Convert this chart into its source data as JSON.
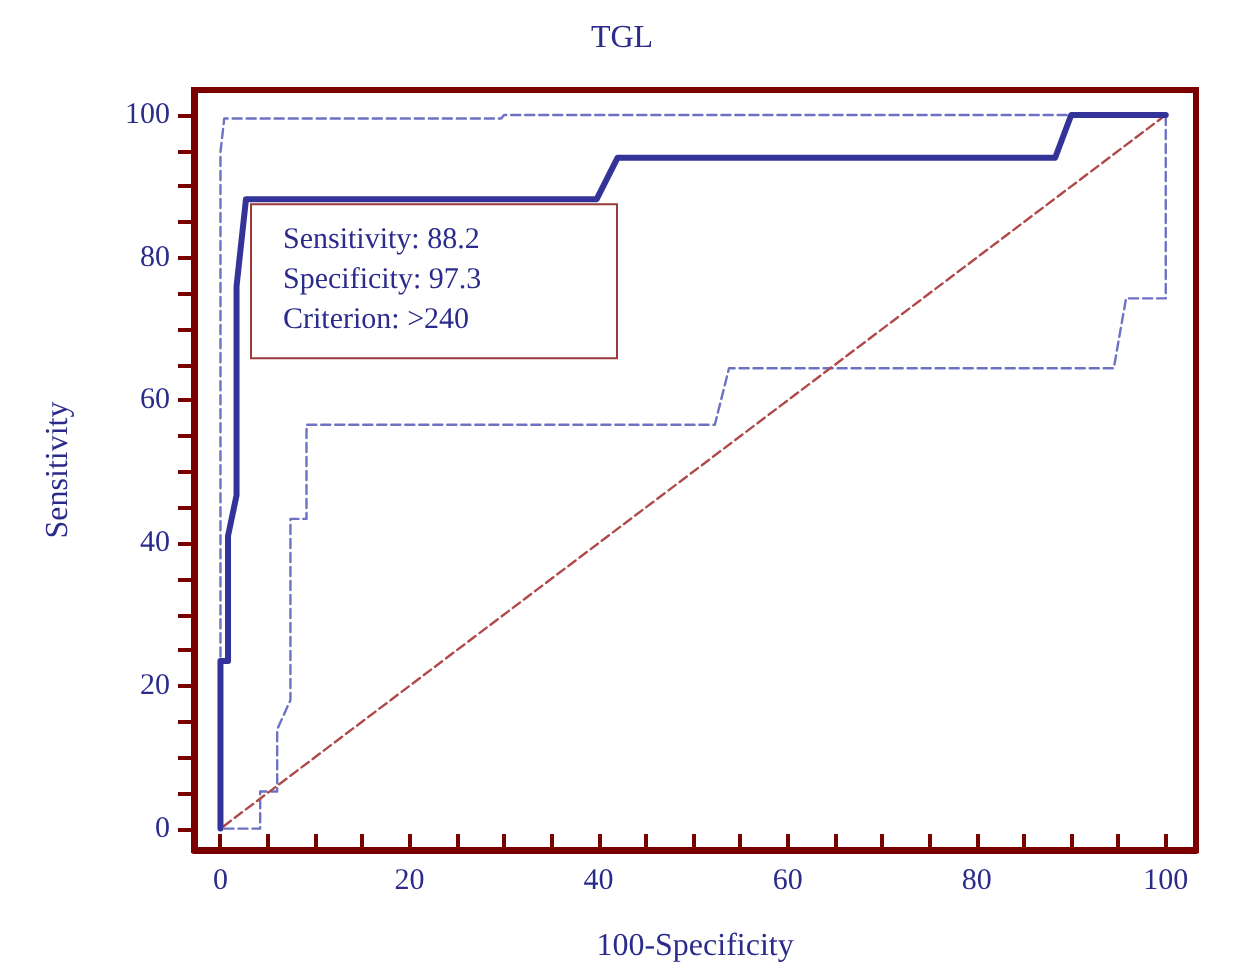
{
  "chart_data": {
    "type": "line",
    "title": "TGL",
    "xlabel": "100-Specificity",
    "ylabel": "Sensitivity",
    "xlim": [
      -2.8,
      103.2
    ],
    "ylim": [
      -3,
      103.5
    ],
    "xticks": [
      0,
      {
        "value": 5,
        "label": null
      },
      {
        "value": 10,
        "label": null
      },
      {
        "value": 15,
        "label": null
      },
      20,
      {
        "value": 25,
        "label": null
      },
      {
        "value": 30,
        "label": null
      },
      {
        "value": 35,
        "label": null
      },
      40,
      {
        "value": 45,
        "label": null
      },
      {
        "value": 50,
        "label": null
      },
      {
        "value": 55,
        "label": null
      },
      60,
      {
        "value": 65,
        "label": null
      },
      {
        "value": 70,
        "label": null
      },
      {
        "value": 75,
        "label": null
      },
      80,
      {
        "value": 85,
        "label": null
      },
      {
        "value": 90,
        "label": null
      },
      {
        "value": 95,
        "label": null
      },
      100
    ],
    "yticks": [
      0,
      {
        "value": 5,
        "label": null
      },
      {
        "value": 10,
        "label": null
      },
      {
        "value": 15,
        "label": null
      },
      20,
      {
        "value": 25,
        "label": null
      },
      {
        "value": 30,
        "label": null
      },
      {
        "value": 35,
        "label": null
      },
      40,
      {
        "value": 45,
        "label": null
      },
      {
        "value": 50,
        "label": null
      },
      {
        "value": 55,
        "label": null
      },
      60,
      {
        "value": 65,
        "label": null
      },
      {
        "value": 70,
        "label": null
      },
      {
        "value": 75,
        "label": null
      },
      80,
      {
        "value": 85,
        "label": null
      },
      {
        "value": 90,
        "label": null
      },
      {
        "value": 95,
        "label": null
      },
      100
    ],
    "grid": false,
    "marker": "none",
    "series": [
      {
        "color": "#6d72c3",
        "line_style": "dashed",
        "x": [
          0,
          0,
          0.4,
          29.7,
          30,
          100
        ],
        "values": [
          0,
          94.8,
          99.5,
          99.5,
          100,
          100
        ]
      },
      {
        "color": "#6d72c3",
        "line_style": "dashed",
        "x": [
          0,
          4.2,
          4.2,
          6,
          6,
          7.4,
          7.4,
          9.1,
          9.1,
          52.3,
          53.8,
          94.5,
          95.8,
          100,
          100
        ],
        "values": [
          0,
          0,
          5.2,
          5.2,
          13.9,
          18,
          43.4,
          43.4,
          56.6,
          56.6,
          64.5,
          64.5,
          74.3,
          74.3,
          100
        ]
      },
      {
        "color": "#b04a4a",
        "line_style": "dashed",
        "x": [
          0,
          100
        ],
        "values": [
          0,
          100
        ]
      },
      {
        "color": "#33339a",
        "line_style": "solid",
        "x": [
          0,
          0,
          0.8,
          0.8,
          1.7,
          1.7,
          2.7,
          39.8,
          42,
          88.3,
          90,
          100
        ],
        "values": [
          0,
          23.5,
          23.5,
          41,
          46.7,
          76,
          88.2,
          88.2,
          94,
          94,
          100,
          100
        ]
      }
    ],
    "annotations": [
      {
        "text": "Sensitivity: 88.2\nSpecificity: 97.3\nCriterion: >240",
        "x": 2.7,
        "y": 88.2
      }
    ]
  }
}
